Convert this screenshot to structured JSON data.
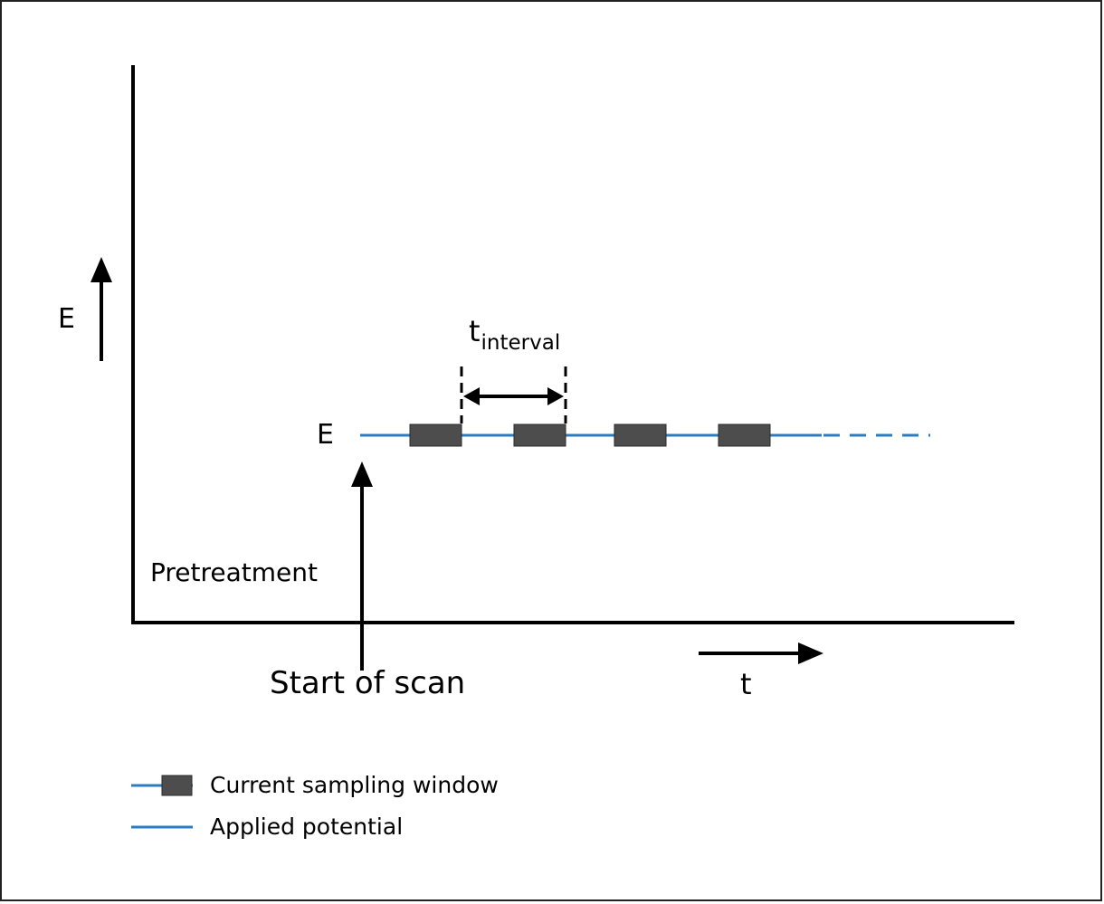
{
  "axis": {
    "y_label": "E",
    "x_label": "t"
  },
  "potential_level_label": "E",
  "interval": {
    "base": "t",
    "subscript": "interval"
  },
  "pretreatment_label": "Pretreatment",
  "start_label": "Start of scan",
  "legend": {
    "sampling_window": "Current sampling window",
    "applied_potential": "Applied potential"
  },
  "colors": {
    "potential_line": "#2e7cc0",
    "sampling_window": "#4d4d4d",
    "axes": "#000000"
  }
}
